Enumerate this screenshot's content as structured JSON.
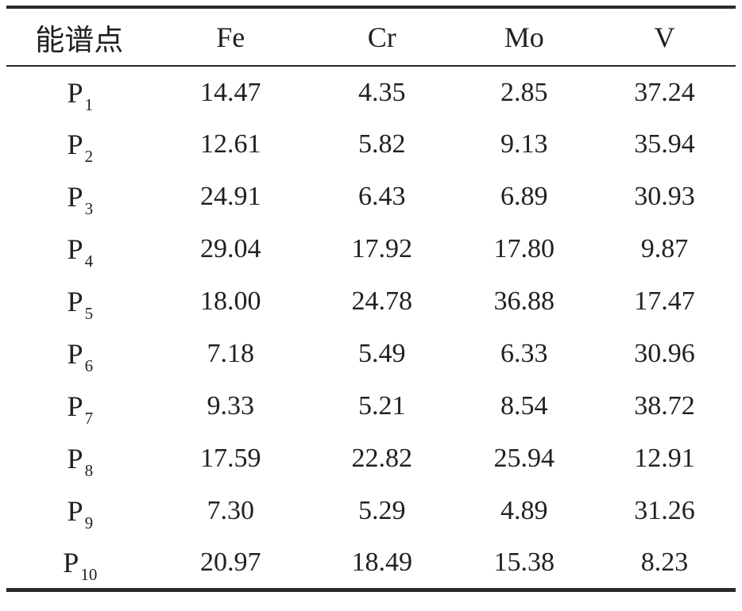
{
  "table": {
    "headers": [
      "能谱点",
      "Fe",
      "Cr",
      "Mo",
      "V"
    ],
    "rows": [
      {
        "label": "P",
        "sub": "1",
        "values": [
          "14.47",
          "4.35",
          "2.85",
          "37.24"
        ]
      },
      {
        "label": "P",
        "sub": "2",
        "values": [
          "12.61",
          "5.82",
          "9.13",
          "35.94"
        ]
      },
      {
        "label": "P",
        "sub": "3",
        "values": [
          "24.91",
          "6.43",
          "6.89",
          "30.93"
        ]
      },
      {
        "label": "P",
        "sub": "4",
        "values": [
          "29.04",
          "17.92",
          "17.80",
          "9.87"
        ]
      },
      {
        "label": "P",
        "sub": "5",
        "values": [
          "18.00",
          "24.78",
          "36.88",
          "17.47"
        ]
      },
      {
        "label": "P",
        "sub": "6",
        "values": [
          "7.18",
          "5.49",
          "6.33",
          "30.96"
        ]
      },
      {
        "label": "P",
        "sub": "7",
        "values": [
          "9.33",
          "5.21",
          "8.54",
          "38.72"
        ]
      },
      {
        "label": "P",
        "sub": "8",
        "values": [
          "17.59",
          "22.82",
          "25.94",
          "12.91"
        ]
      },
      {
        "label": "P",
        "sub": "9",
        "values": [
          "7.30",
          "5.29",
          "4.89",
          "31.26"
        ]
      },
      {
        "label": "P",
        "sub": "10",
        "values": [
          "20.97",
          "18.49",
          "15.38",
          "8.23"
        ]
      }
    ]
  },
  "colors": {
    "text": "#231f20",
    "rule": "#2b2a29",
    "background": "#ffffff"
  },
  "chart_data": {
    "type": "table",
    "title": "",
    "columns": [
      "能谱点",
      "Fe",
      "Cr",
      "Mo",
      "V"
    ],
    "rows": [
      [
        "P1",
        14.47,
        4.35,
        2.85,
        37.24
      ],
      [
        "P2",
        12.61,
        5.82,
        9.13,
        35.94
      ],
      [
        "P3",
        24.91,
        6.43,
        6.89,
        30.93
      ],
      [
        "P4",
        29.04,
        17.92,
        17.8,
        9.87
      ],
      [
        "P5",
        18.0,
        24.78,
        36.88,
        17.47
      ],
      [
        "P6",
        7.18,
        5.49,
        6.33,
        30.96
      ],
      [
        "P7",
        9.33,
        5.21,
        8.54,
        38.72
      ],
      [
        "P8",
        17.59,
        22.82,
        25.94,
        12.91
      ],
      [
        "P9",
        7.3,
        5.29,
        4.89,
        31.26
      ],
      [
        "P10",
        20.97,
        18.49,
        15.38,
        8.23
      ]
    ]
  }
}
